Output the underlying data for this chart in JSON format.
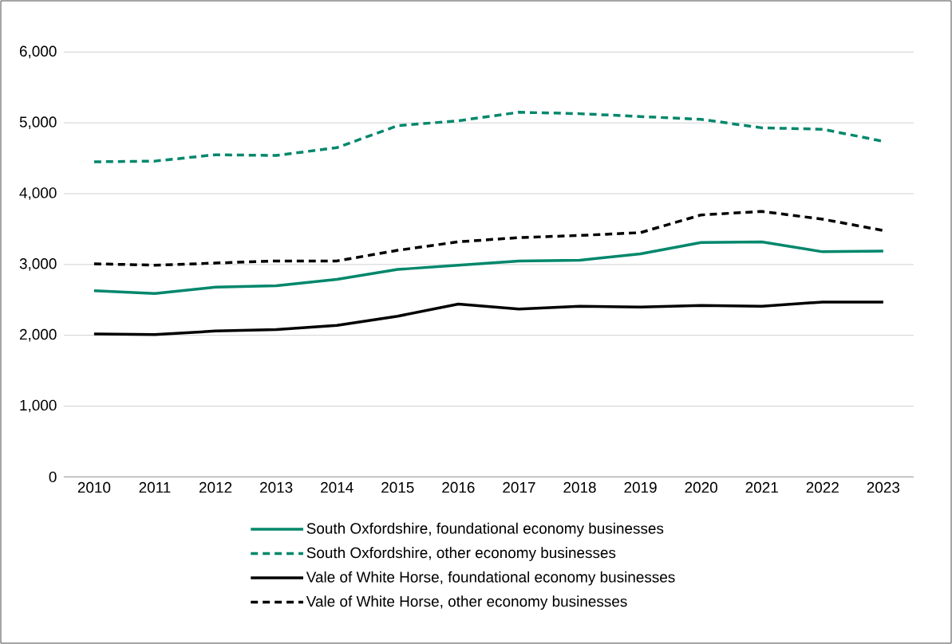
{
  "chart_data": {
    "type": "line",
    "categories": [
      "2010",
      "2011",
      "2012",
      "2013",
      "2014",
      "2015",
      "2016",
      "2017",
      "2018",
      "2019",
      "2020",
      "2021",
      "2022",
      "2023"
    ],
    "ylim": [
      0,
      6000
    ],
    "yticks": [
      {
        "value": 0,
        "label": "0"
      },
      {
        "value": 1000,
        "label": "1,000"
      },
      {
        "value": 2000,
        "label": "2,000"
      },
      {
        "value": 3000,
        "label": "3,000"
      },
      {
        "value": 4000,
        "label": "4,000"
      },
      {
        "value": 5000,
        "label": "5,000"
      },
      {
        "value": 6000,
        "label": "6,000"
      }
    ],
    "grid": "y",
    "legend": "bottom",
    "marker": "none",
    "series": [
      {
        "name": "South Oxfordshire, foundational economy businesses",
        "color": "#00876c",
        "line_style": "solid",
        "values": [
          2630,
          2590,
          2680,
          2700,
          2790,
          2930,
          2990,
          3050,
          3060,
          3150,
          3310,
          3320,
          3180,
          3190
        ]
      },
      {
        "name": "South Oxfordshire, other economy businesses",
        "color": "#00876c",
        "line_style": "dashed",
        "values": [
          4450,
          4460,
          4550,
          4540,
          4650,
          4960,
          5030,
          5150,
          5130,
          5090,
          5050,
          4930,
          4910,
          4740
        ]
      },
      {
        "name": "Vale of White Horse, foundational economy businesses",
        "color": "#000000",
        "line_style": "solid",
        "values": [
          2020,
          2010,
          2060,
          2080,
          2140,
          2270,
          2440,
          2370,
          2410,
          2400,
          2420,
          2410,
          2470,
          2470
        ]
      },
      {
        "name": "Vale of White Horse, other economy businesses",
        "color": "#000000",
        "line_style": "dashed",
        "values": [
          3010,
          2990,
          3020,
          3050,
          3050,
          3200,
          3320,
          3380,
          3410,
          3450,
          3700,
          3750,
          3640,
          3480
        ]
      }
    ]
  }
}
